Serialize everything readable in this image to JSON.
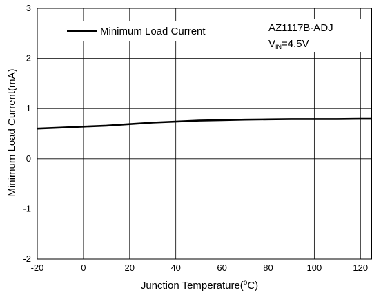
{
  "chart_data": {
    "type": "line",
    "xlabel": "Junction Temperature(",
    "xlabel_sup": "o",
    "xlabel_unit": "C)",
    "ylabel": "Minimum Load Current(mA)",
    "xlim": [
      -20,
      125
    ],
    "ylim": [
      -2,
      3
    ],
    "xticks": [
      -20,
      0,
      20,
      40,
      60,
      80,
      100,
      120
    ],
    "yticks": [
      -2,
      -1,
      0,
      1,
      2,
      3
    ],
    "grid": true,
    "legend_position": "top-left",
    "annotation": {
      "line1": "AZ1117B-ADJ",
      "line2_main": "V",
      "line2_sub": "IN",
      "line2_rest": "=4.5V"
    },
    "series": [
      {
        "name": "Minimum Load Current",
        "color": "#000000",
        "x": [
          -20,
          -10,
          0,
          10,
          20,
          30,
          40,
          50,
          60,
          70,
          80,
          90,
          100,
          110,
          120,
          125
        ],
        "y": [
          0.6,
          0.62,
          0.64,
          0.66,
          0.69,
          0.72,
          0.74,
          0.76,
          0.77,
          0.78,
          0.785,
          0.79,
          0.79,
          0.79,
          0.795,
          0.795
        ]
      }
    ]
  }
}
